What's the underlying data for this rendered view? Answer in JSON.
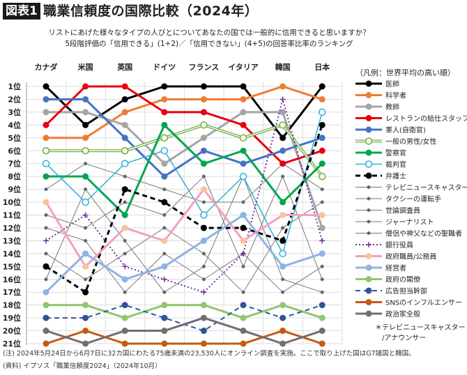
{
  "header": {
    "badge": "図表1",
    "title": "職業信頼度の国際比較（2024年）",
    "subtitle_1": "リストにあげた様々なタイプの人びとについてあなたの国では一般的に信用できると思いますか？",
    "subtitle_2": "5段階評価の「信用できる」(1+2)／「信用できない」(4+5)の回答率比率のランキング"
  },
  "chart_data": {
    "type": "line",
    "subtype": "bump",
    "categories": [
      "カナダ",
      "米国",
      "英国",
      "ドイツ",
      "フランス",
      "イタリア",
      "韓国",
      "日本"
    ],
    "y_tick_labels": [
      "1位",
      "2位",
      "3位",
      "4位",
      "5位",
      "6位",
      "7位",
      "8位",
      "9位",
      "10位",
      "11位",
      "12位",
      "13位",
      "14位",
      "15位",
      "16位",
      "17位",
      "18位",
      "19位",
      "20位",
      "21位"
    ],
    "ylim": [
      1,
      21
    ],
    "y_inverted": true,
    "grid": true,
    "legend_title": "（凡例：世界平均の高い順）",
    "legend_position": "right",
    "legend_note": [
      "＊テレビニュースキャスター",
      "/アナウンサー"
    ],
    "series": [
      {
        "name": "医師",
        "values": [
          1,
          4,
          2,
          1,
          1,
          1,
          5,
          1
        ],
        "color": "#000000",
        "style": "solid-thick",
        "marker": "filled"
      },
      {
        "name": "科学者",
        "values": [
          5,
          5,
          3,
          2,
          2,
          2,
          1,
          2
        ],
        "color": "#ed7d31",
        "style": "solid-thick",
        "marker": "filled"
      },
      {
        "name": "教師",
        "values": [
          3,
          3,
          4,
          7,
          5,
          3,
          3,
          12
        ],
        "color": "#a5a5a5",
        "style": "solid-thick",
        "marker": "filled"
      },
      {
        "name": "レストランの給仕スタッフ",
        "values": [
          4,
          1,
          1,
          3,
          3,
          4,
          7,
          6
        ],
        "color": "#e60012",
        "style": "solid-thick",
        "marker": "filled"
      },
      {
        "name": "軍人(自衛官)",
        "values": [
          2,
          2,
          5,
          8,
          6,
          7,
          6,
          5
        ],
        "color": "#4472c4",
        "style": "solid-thick",
        "marker": "filled"
      },
      {
        "name": "一般の男性/女性",
        "values": [
          6,
          6,
          6,
          5,
          4,
          5,
          4,
          8
        ],
        "color": "#70ad47",
        "style": "double",
        "marker": "hollow"
      },
      {
        "name": "警察官",
        "values": [
          8,
          8,
          11,
          4,
          7,
          6,
          10,
          7
        ],
        "color": "#00a650",
        "style": "solid-thick",
        "marker": "filled"
      },
      {
        "name": "裁判官",
        "values": [
          7,
          10,
          7,
          6,
          11,
          8,
          14,
          3
        ],
        "color": "#2eb0d8",
        "style": "solid-thin",
        "marker": "hollow"
      },
      {
        "name": "弁護士",
        "values": [
          15,
          17,
          9,
          10,
          12,
          12,
          13,
          4
        ],
        "color": "#000000",
        "style": "dashed-thick",
        "marker": "filled"
      },
      {
        "name": "テレビニュースキャスター＊",
        "values": [
          9,
          7,
          8,
          9,
          10,
          10,
          7,
          9
        ],
        "color": "#777777",
        "style": "thin",
        "marker": "small"
      },
      {
        "name": "タクシーの運転手",
        "values": [
          11,
          12,
          10,
          11,
          8,
          15,
          8,
          16
        ],
        "color": "#777777",
        "style": "thin",
        "marker": "small"
      },
      {
        "name": "世論調査員",
        "values": [
          12,
          13,
          17,
          14,
          16,
          14,
          17,
          15
        ],
        "color": "#777777",
        "style": "thin",
        "marker": "small"
      },
      {
        "name": "ジャーナリスト",
        "values": [
          14,
          16,
          14,
          12,
          14,
          17,
          12,
          10
        ],
        "color": "#777777",
        "style": "thin",
        "marker": "small"
      },
      {
        "name": "僧侶や神父などの聖職者",
        "values": [
          16,
          9,
          13,
          17,
          15,
          8,
          16,
          17
        ],
        "color": "#777777",
        "style": "thin",
        "marker": "small"
      },
      {
        "name": "銀行役員",
        "values": [
          13,
          11,
          15,
          16,
          17,
          14,
          2,
          13
        ],
        "color": "#7030a0",
        "style": "dotted",
        "marker": "plus"
      },
      {
        "name": "政府職員/公務員",
        "values": [
          10,
          15,
          12,
          13,
          9,
          13,
          11,
          11
        ],
        "color": "#f4a0c0",
        "marker_color": "#f8c49a",
        "style": "solid-thick",
        "marker": "filled"
      },
      {
        "name": "経営者",
        "values": [
          17,
          14,
          16,
          15,
          13,
          11,
          15,
          14
        ],
        "color": "#8db4e2",
        "style": "solid-thick",
        "marker": "filled"
      },
      {
        "name": "政府の閣僚",
        "values": [
          18,
          18,
          19,
          18,
          18,
          19,
          18,
          19
        ],
        "color": "#92c56f",
        "style": "solid-thick",
        "marker": "filled"
      },
      {
        "name": "広告担当幹部",
        "values": [
          19,
          19,
          18,
          19,
          20,
          18,
          19,
          18
        ],
        "color": "#2f5597",
        "style": "dashed",
        "marker": "filled"
      },
      {
        "name": "SNSのインフルエンサー",
        "values": [
          21,
          20,
          21,
          21,
          21,
          21,
          20,
          21
        ],
        "color": "#c55a11",
        "style": "solid-thick",
        "marker": "filled"
      },
      {
        "name": "政治家全般",
        "values": [
          20,
          21,
          20,
          20,
          19,
          20,
          21,
          20
        ],
        "color": "#707070",
        "style": "solid-thick",
        "marker": "filled"
      }
    ]
  },
  "footer": {
    "note": "(注) 2024年5月24日から6月7日に32カ国にわたる75歳未満の23,530人にオンライン調査を実施。ここで取り上げた国はG7諸国と韓国。",
    "source": "(資料) イプソス「職業信頼度2024」（2024年10月）"
  }
}
